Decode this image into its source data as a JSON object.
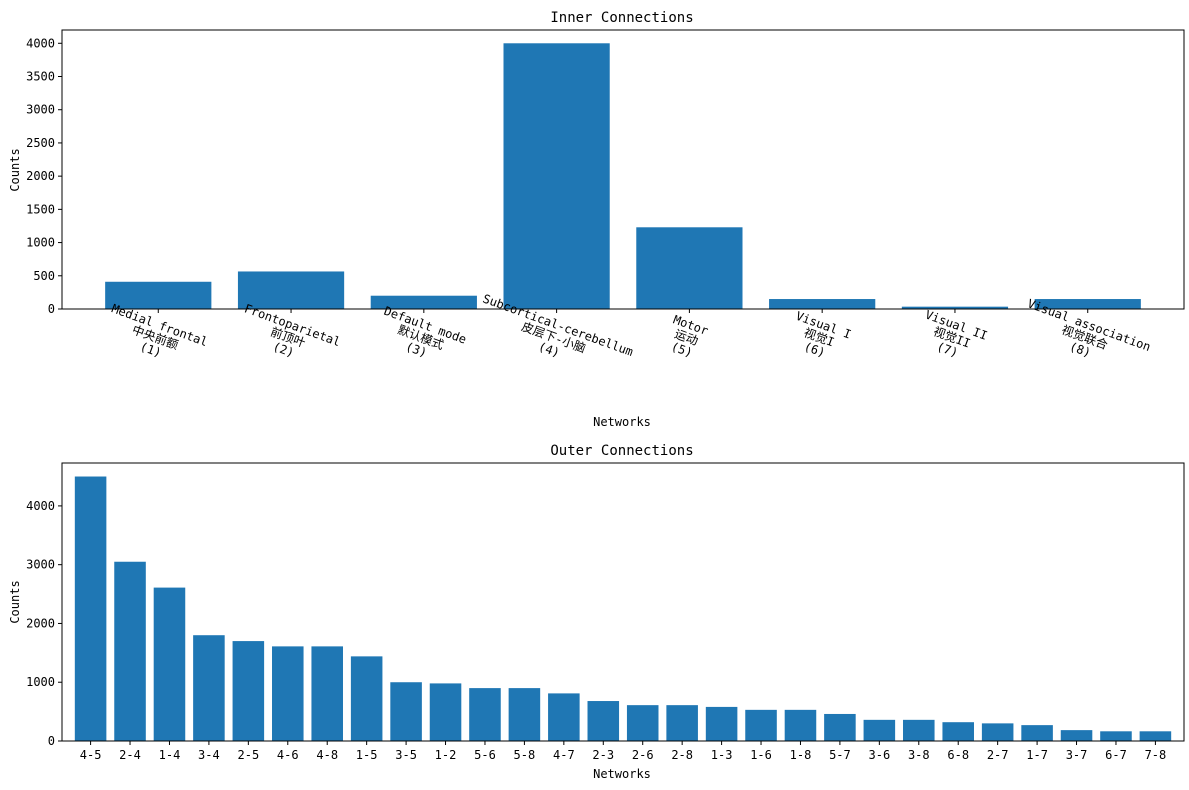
{
  "chart_data": [
    {
      "type": "bar",
      "title": "Inner Connections",
      "xlabel": "Networks",
      "ylabel": "Counts",
      "categories": [
        [
          "Medial frontal",
          "中央前额",
          "(1)"
        ],
        [
          "Frontoparietal",
          "前顶叶",
          "(2)"
        ],
        [
          "Default mode",
          "默认模式",
          "(3)"
        ],
        [
          "Subcortical-cerebellum",
          "皮层下-小脑",
          "(4)"
        ],
        [
          "Motor",
          "运动",
          "(5)"
        ],
        [
          "Visual I",
          "视觉I",
          "(6)"
        ],
        [
          "Visual II",
          "视觉II",
          "(7)"
        ],
        [
          "Visual association",
          "视觉联合",
          "(8)"
        ]
      ],
      "values": [
        410,
        565,
        200,
        4000,
        1230,
        150,
        35,
        150
      ],
      "ylim": [
        0,
        4200
      ],
      "yticks": [
        0,
        500,
        1000,
        1500,
        2000,
        2500,
        3000,
        3500,
        4000
      ],
      "color": "#1f77b4",
      "grid": false
    },
    {
      "type": "bar",
      "title": "Outer Connections",
      "xlabel": "Networks",
      "ylabel": "Counts",
      "categories": [
        "4-5",
        "2-4",
        "1-4",
        "3-4",
        "2-5",
        "4-6",
        "4-8",
        "1-5",
        "3-5",
        "1-2",
        "5-6",
        "5-8",
        "4-7",
        "2-3",
        "2-6",
        "2-8",
        "1-3",
        "1-6",
        "1-8",
        "5-7",
        "3-6",
        "3-8",
        "6-8",
        "2-7",
        "1-7",
        "3-7",
        "6-7",
        "7-8"
      ],
      "values": [
        4500,
        3050,
        2610,
        1800,
        1700,
        1610,
        1610,
        1440,
        1000,
        980,
        900,
        900,
        810,
        680,
        610,
        610,
        580,
        530,
        530,
        460,
        360,
        360,
        320,
        300,
        270,
        185,
        165,
        165
      ],
      "ylim": [
        0,
        4730
      ],
      "yticks": [
        0,
        1000,
        2000,
        3000,
        4000
      ],
      "color": "#1f77b4",
      "grid": false
    }
  ]
}
